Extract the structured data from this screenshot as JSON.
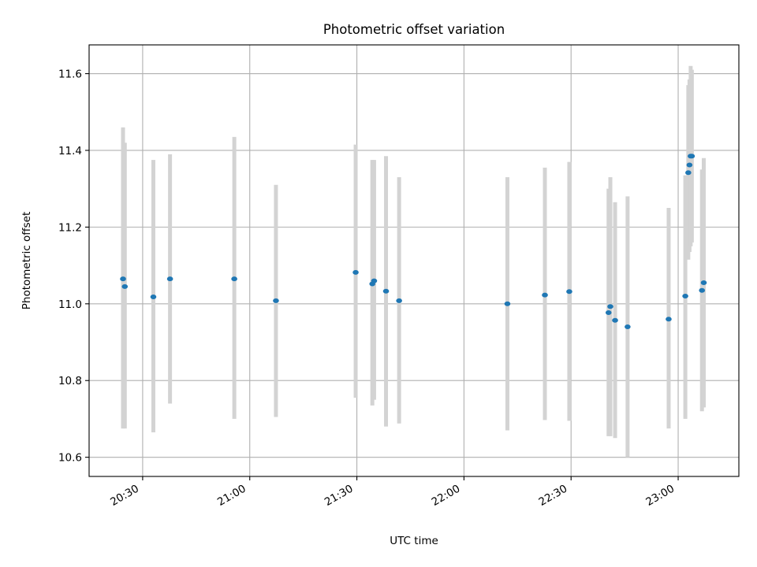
{
  "chart_data": {
    "type": "scatter",
    "title": "Photometric offset variation",
    "xlabel": "UTC time",
    "ylabel": "Photometric offset",
    "x_unit": "UTC time (HH:MM)",
    "xlim": [
      "20:15",
      "23:17"
    ],
    "ylim": [
      10.55,
      11.675
    ],
    "x_ticks": [
      "20:30",
      "21:00",
      "21:30",
      "22:00",
      "22:30",
      "23:00"
    ],
    "y_ticks": [
      10.6,
      10.8,
      11.0,
      11.2,
      11.4,
      11.6
    ],
    "grid": true,
    "marker_color": "#1f77b4",
    "errorbar_color": "#d3d3d3",
    "points": [
      {
        "x": "20:24:30",
        "y": 11.065,
        "ylow": 10.675,
        "yhigh": 11.46
      },
      {
        "x": "20:25:00",
        "y": 11.045,
        "ylow": 10.675,
        "yhigh": 11.42
      },
      {
        "x": "20:33:00",
        "y": 11.018,
        "ylow": 10.665,
        "yhigh": 11.375
      },
      {
        "x": "20:37:40",
        "y": 11.065,
        "ylow": 10.74,
        "yhigh": 11.39
      },
      {
        "x": "20:55:40",
        "y": 11.065,
        "ylow": 10.7,
        "yhigh": 11.435
      },
      {
        "x": "21:07:20",
        "y": 11.008,
        "ylow": 10.705,
        "yhigh": 11.31
      },
      {
        "x": "21:29:40",
        "y": 11.082,
        "ylow": 10.755,
        "yhigh": 11.415
      },
      {
        "x": "21:34:20",
        "y": 11.052,
        "ylow": 10.735,
        "yhigh": 11.375
      },
      {
        "x": "21:34:50",
        "y": 11.06,
        "ylow": 10.75,
        "yhigh": 11.375
      },
      {
        "x": "21:38:10",
        "y": 11.033,
        "ylow": 10.68,
        "yhigh": 11.385
      },
      {
        "x": "21:41:50",
        "y": 11.008,
        "ylow": 10.688,
        "yhigh": 11.33
      },
      {
        "x": "22:12:10",
        "y": 11.0,
        "ylow": 10.67,
        "yhigh": 11.33
      },
      {
        "x": "22:22:40",
        "y": 11.023,
        "ylow": 10.697,
        "yhigh": 11.355
      },
      {
        "x": "22:29:30",
        "y": 11.032,
        "ylow": 10.695,
        "yhigh": 11.37
      },
      {
        "x": "22:40:30",
        "y": 10.977,
        "ylow": 10.655,
        "yhigh": 11.3
      },
      {
        "x": "22:41:00",
        "y": 10.993,
        "ylow": 10.655,
        "yhigh": 11.33
      },
      {
        "x": "22:42:20",
        "y": 10.957,
        "ylow": 10.65,
        "yhigh": 11.265
      },
      {
        "x": "22:45:50",
        "y": 10.94,
        "ylow": 10.6,
        "yhigh": 11.28
      },
      {
        "x": "22:57:20",
        "y": 10.96,
        "ylow": 10.675,
        "yhigh": 11.25
      },
      {
        "x": "23:02:00",
        "y": 11.02,
        "ylow": 10.7,
        "yhigh": 11.335
      },
      {
        "x": "23:02:50",
        "y": 11.342,
        "ylow": 11.115,
        "yhigh": 11.57
      },
      {
        "x": "23:03:10",
        "y": 11.362,
        "ylow": 11.135,
        "yhigh": 11.585
      },
      {
        "x": "23:03:30",
        "y": 11.385,
        "ylow": 11.15,
        "yhigh": 11.62
      },
      {
        "x": "23:03:50",
        "y": 11.385,
        "ylow": 11.16,
        "yhigh": 11.61
      },
      {
        "x": "23:06:40",
        "y": 11.035,
        "ylow": 10.72,
        "yhigh": 11.35
      },
      {
        "x": "23:07:10",
        "y": 11.055,
        "ylow": 10.73,
        "yhigh": 11.38
      }
    ]
  }
}
